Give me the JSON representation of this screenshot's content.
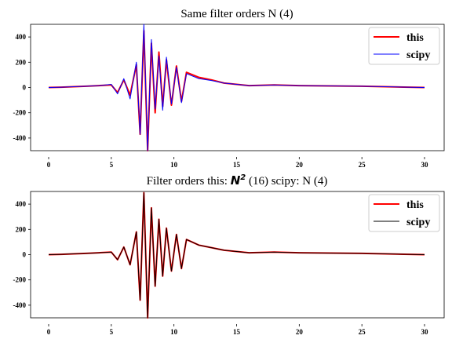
{
  "chart_data": [
    {
      "type": "line",
      "title": "Same filter orders N (4)",
      "xlim": [
        0,
        30
      ],
      "ylim": [
        -500,
        500
      ],
      "xticks": [
        0,
        5,
        10,
        15,
        20,
        25,
        30
      ],
      "yticks": [
        -400,
        -200,
        0,
        200,
        400
      ],
      "grid": false,
      "legend_placement": "top-right",
      "series": [
        {
          "name": "this",
          "color": "#ff0000",
          "linewidth": 2.0,
          "x": [
            0,
            1,
            2,
            3,
            4,
            5,
            5.5,
            6,
            6.5,
            7,
            7.3,
            7.6,
            7.9,
            8.2,
            8.5,
            8.8,
            9.1,
            9.4,
            9.8,
            10.2,
            10.6,
            11,
            12,
            13,
            14,
            15,
            16,
            18,
            20,
            25,
            30
          ],
          "y": [
            0,
            2,
            6,
            10,
            15,
            20,
            -40,
            60,
            -60,
            180,
            -370,
            450,
            -500,
            350,
            -200,
            280,
            -150,
            220,
            -140,
            170,
            -110,
            120,
            80,
            60,
            35,
            25,
            15,
            20,
            15,
            10,
            0
          ]
        },
        {
          "name": "scipy",
          "color": "#0000ff",
          "linewidth": 1.0,
          "x": [
            0,
            1,
            2,
            3,
            4,
            5,
            5.5,
            6,
            6.5,
            7,
            7.3,
            7.6,
            7.9,
            8.2,
            8.5,
            8.8,
            9.1,
            9.4,
            9.8,
            10.2,
            10.6,
            11,
            12,
            13,
            14,
            15,
            16,
            18,
            20,
            25,
            30
          ],
          "y": [
            0,
            2,
            6,
            10,
            15,
            25,
            -50,
            70,
            -90,
            200,
            -370,
            500,
            -500,
            380,
            -170,
            250,
            -180,
            240,
            -130,
            160,
            -120,
            110,
            70,
            55,
            35,
            25,
            15,
            20,
            15,
            10,
            0
          ]
        }
      ]
    },
    {
      "type": "line",
      "title_prefix": "Filter orders this: ",
      "title_math": "N",
      "title_math_sup": "2",
      "title_suffix": " (16)  scipy: N (4)",
      "xlim": [
        0,
        30
      ],
      "ylim": [
        -500,
        500
      ],
      "xticks": [
        0,
        5,
        10,
        15,
        20,
        25,
        30
      ],
      "yticks": [
        -400,
        -200,
        0,
        200,
        400
      ],
      "grid": false,
      "legend_placement": "top-right",
      "series": [
        {
          "name": "this",
          "color": "#ff0000",
          "linewidth": 2.0,
          "x": [
            0,
            1,
            2,
            3,
            4,
            5,
            5.5,
            6,
            6.5,
            7,
            7.3,
            7.6,
            7.9,
            8.2,
            8.5,
            8.8,
            9.1,
            9.4,
            9.8,
            10.2,
            10.6,
            11,
            12,
            13,
            14,
            15,
            16,
            18,
            20,
            25,
            30
          ],
          "y": [
            0,
            2,
            6,
            10,
            15,
            20,
            -40,
            60,
            -80,
            180,
            -360,
            490,
            -500,
            370,
            -250,
            280,
            -170,
            210,
            -130,
            160,
            -110,
            120,
            75,
            55,
            35,
            25,
            15,
            20,
            15,
            10,
            0
          ]
        },
        {
          "name": "scipy",
          "color": "#000000",
          "linewidth": 1.0,
          "x": [
            0,
            1,
            2,
            3,
            4,
            5,
            5.5,
            6,
            6.5,
            7,
            7.3,
            7.6,
            7.9,
            8.2,
            8.5,
            8.8,
            9.1,
            9.4,
            9.8,
            10.2,
            10.6,
            11,
            12,
            13,
            14,
            15,
            16,
            18,
            20,
            25,
            30
          ],
          "y": [
            0,
            2,
            6,
            10,
            15,
            20,
            -40,
            60,
            -80,
            180,
            -360,
            490,
            -500,
            370,
            -250,
            280,
            -170,
            210,
            -130,
            160,
            -110,
            120,
            75,
            55,
            35,
            25,
            15,
            20,
            15,
            10,
            0
          ]
        }
      ]
    }
  ]
}
